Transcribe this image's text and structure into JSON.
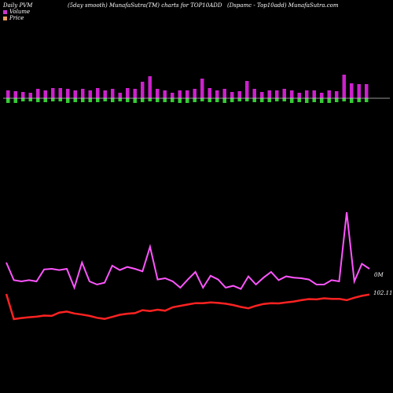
{
  "header": {
    "left": "Daily PVM",
    "center": "(5day smooth) MunafaSutra(TM) charts for TOP10ADD",
    "right": "(Dspamc - Top10add) MunafaSutra.com"
  },
  "legend": [
    {
      "label": "Volume",
      "color": "#cc33cc"
    },
    {
      "label": "Price",
      "color": "#e8a060"
    }
  ],
  "colors": {
    "background": "#000000",
    "volume_up": "#cc22cc",
    "volume_down": "#33cc33",
    "volume_line": "#ff55ff",
    "price_line": "#ff2222",
    "baseline": "#cccccc"
  },
  "chart_data": {
    "type": "line",
    "volume_bars": {
      "baseline_label": "",
      "up_heights": [
        10,
        9,
        8,
        7,
        12,
        10,
        13,
        13,
        12,
        10,
        12,
        10,
        13,
        10,
        12,
        7,
        13,
        12,
        21,
        28,
        12,
        10,
        7,
        10,
        10,
        12,
        25,
        13,
        10,
        12,
        8,
        9,
        22,
        12,
        8,
        10,
        10,
        12,
        10,
        7,
        10,
        10,
        7,
        10,
        9,
        30,
        19,
        18,
        18
      ],
      "down_heights": [
        6,
        6,
        4,
        4,
        5,
        5,
        4,
        4,
        6,
        5,
        5,
        5,
        5,
        4,
        5,
        4,
        5,
        6,
        5,
        4,
        5,
        5,
        5,
        6,
        6,
        5,
        4,
        5,
        5,
        6,
        5,
        4,
        4,
        5,
        5,
        5,
        4,
        4,
        6,
        5,
        6,
        5,
        6,
        6,
        5,
        4,
        6,
        5,
        5
      ]
    },
    "series": [
      {
        "name": "Volume",
        "label": "0M",
        "values": [
          70,
          42,
          40,
          42,
          40,
          59,
          60,
          58,
          60,
          30,
          70,
          40,
          35,
          38,
          65,
          58,
          63,
          60,
          56,
          95,
          43,
          45,
          40,
          30,
          43,
          55,
          30,
          49,
          43,
          30,
          33,
          28,
          48,
          35,
          46,
          55,
          42,
          48,
          46,
          45,
          43,
          35,
          35,
          42,
          40,
          150,
          40,
          68,
          60
        ]
      },
      {
        "name": "Price",
        "label": "102.11",
        "values": [
          102.3,
          93.0,
          93.4,
          93.7,
          93.9,
          94.3,
          94.2,
          95.4,
          95.8,
          95.1,
          94.7,
          94.2,
          93.5,
          93.1,
          93.8,
          94.6,
          95.0,
          95.2,
          96.3,
          96.0,
          96.5,
          96.1,
          97.4,
          97.9,
          98.4,
          98.9,
          98.9,
          99.2,
          99.0,
          98.7,
          98.2,
          97.5,
          97.0,
          97.9,
          98.6,
          98.9,
          98.8,
          99.2,
          99.5,
          100.0,
          100.4,
          100.3,
          100.7,
          100.5,
          100.5,
          100.0,
          100.9,
          101.6,
          102.11
        ]
      }
    ]
  }
}
